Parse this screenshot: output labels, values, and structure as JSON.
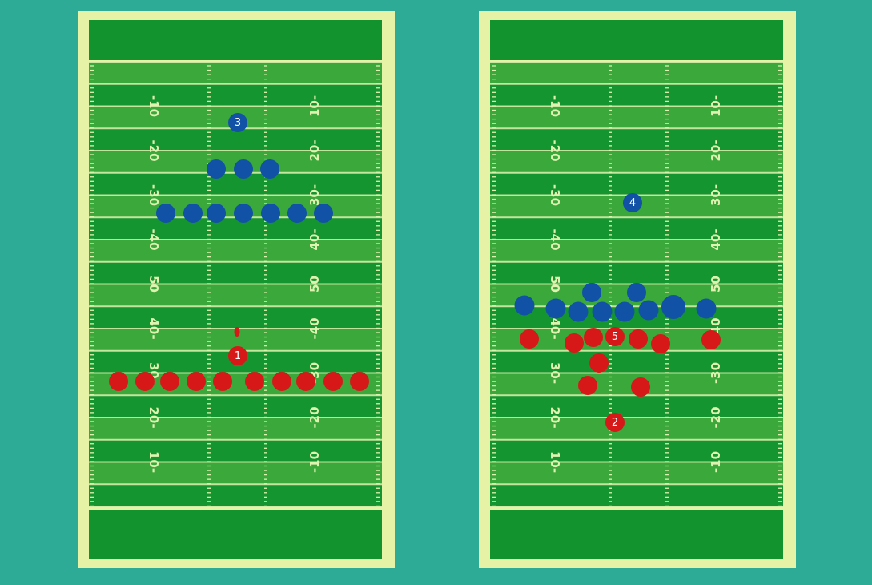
{
  "colors": {
    "background": "#2eab97",
    "field_border": "#e6f2a6",
    "endzone": "#12932e",
    "stripe_dark": "#15952f",
    "stripe_light": "#3aa83a",
    "line": "#dff2b0",
    "team_blue": "#1152a6",
    "team_red": "#d61818",
    "marker_text": "#ffffff"
  },
  "yard_labels_left_column": [
    "-10",
    "-20",
    "-30",
    "-40",
    "50",
    "40-",
    "30-",
    "20-",
    "10-"
  ],
  "yard_labels_right_column": [
    "10-",
    "20-",
    "30-",
    "40-",
    "50",
    "-40",
    "-30",
    "-20",
    "-10"
  ],
  "left_diagram": {
    "blue_markers": [
      {
        "label": "3"
      }
    ],
    "red_markers": [
      {
        "label": "1"
      }
    ],
    "has_football": true
  },
  "right_diagram": {
    "blue_markers": [
      {
        "label": "4"
      }
    ],
    "red_markers": [
      {
        "label": "5"
      },
      {
        "label": "2"
      }
    ],
    "has_football": false
  }
}
